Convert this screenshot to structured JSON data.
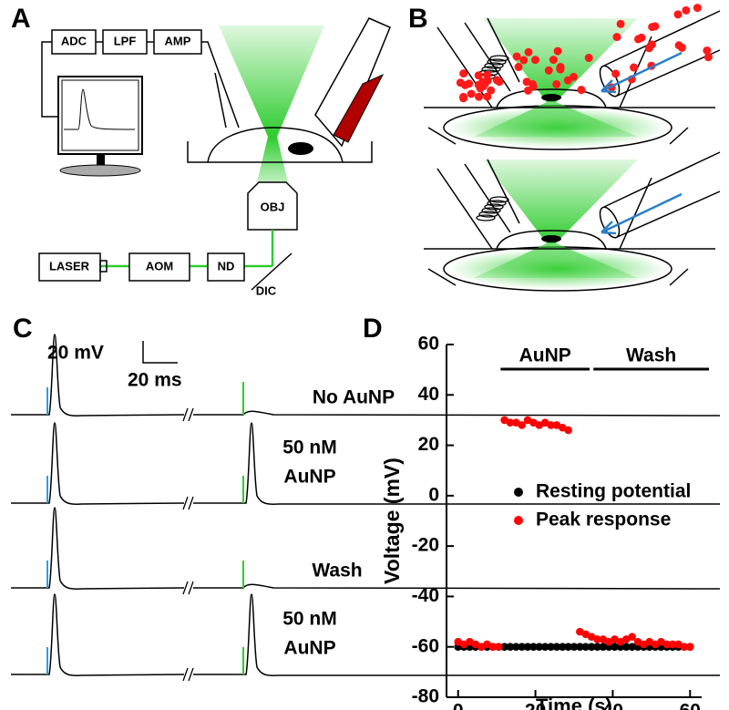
{
  "panels": {
    "a": {
      "label": "A",
      "boxes": [
        "ADC",
        "LPF",
        "AMP",
        "OBJ",
        "LASER",
        "AOM",
        "ND"
      ],
      "dic": "DIC"
    },
    "b": {
      "label": "B"
    },
    "c": {
      "label": "C",
      "scale_voltage": "20 mV",
      "scale_time": "20 ms",
      "conditions": [
        [
          "No AuNP"
        ],
        [
          "50 nM",
          "AuNP"
        ],
        [
          "Wash"
        ],
        [
          "50 nM",
          "AuNP"
        ]
      ]
    },
    "d": {
      "label": "D"
    }
  },
  "chart_data": {
    "type": "scatter",
    "xlabel": "Time (s)",
    "ylabel": "Voltage (mV)",
    "xlim": [
      -3,
      63
    ],
    "ylim": [
      -80,
      60
    ],
    "xticks": [
      0,
      20,
      40,
      60
    ],
    "yticks": [
      60,
      40,
      20,
      0,
      -20,
      -40,
      -60,
      -80
    ],
    "legend": "right",
    "periods": [
      {
        "label": "AuNP",
        "start": 11,
        "end": 34
      },
      {
        "label": "Wash",
        "start": 35,
        "end": 65
      }
    ],
    "series": [
      {
        "name": "Resting potential",
        "color": "#000000",
        "x": [
          0,
          1.5,
          3,
          4.5,
          6,
          7.5,
          9,
          10.5,
          12,
          13.5,
          15,
          16.5,
          18,
          19.5,
          21,
          22.5,
          24,
          25.5,
          27,
          28.5,
          30,
          31.5,
          33,
          34.5,
          36,
          37.5,
          39,
          40.5,
          42,
          43.5,
          45,
          46.5,
          48,
          49.5,
          51,
          52.5,
          54,
          55.5,
          57,
          58.5,
          60
        ],
        "values": [
          -60,
          -60,
          -60,
          -60,
          -60,
          -60,
          -60,
          -60,
          -60,
          -60,
          -60,
          -60,
          -60,
          -60,
          -60,
          -60,
          -60,
          -60,
          -60,
          -60,
          -60,
          -60,
          -60,
          -60,
          -60,
          -60,
          -60,
          -60,
          -60,
          -60,
          -60,
          -60,
          -60,
          -60,
          -60,
          -60,
          -60,
          -60,
          -60,
          -60,
          -60
        ]
      },
      {
        "name": "Peak response",
        "color": "#ff0000",
        "x": [
          0,
          1.5,
          3,
          4.5,
          6,
          7.5,
          9,
          10.5,
          12,
          13.5,
          15,
          16.5,
          18,
          19.5,
          21,
          22.5,
          24,
          25.5,
          27,
          28.5,
          31.5,
          33,
          34.5,
          36,
          37.5,
          39,
          40.5,
          42,
          43.5,
          45,
          46.5,
          48,
          49.5,
          51,
          52.5,
          54,
          55.5,
          57,
          58.5,
          60
        ],
        "values": [
          -58,
          -59,
          -58,
          -59,
          -60,
          -59,
          -60,
          -60,
          30,
          29,
          29,
          28,
          30,
          29,
          28,
          29,
          28,
          28,
          27,
          26,
          -54,
          -55,
          -56,
          -57,
          -57,
          -58,
          -57,
          -58,
          -57,
          -56,
          -58,
          -59,
          -58,
          -59,
          -58,
          -59,
          -59,
          -59,
          -60,
          -60
        ]
      }
    ]
  }
}
